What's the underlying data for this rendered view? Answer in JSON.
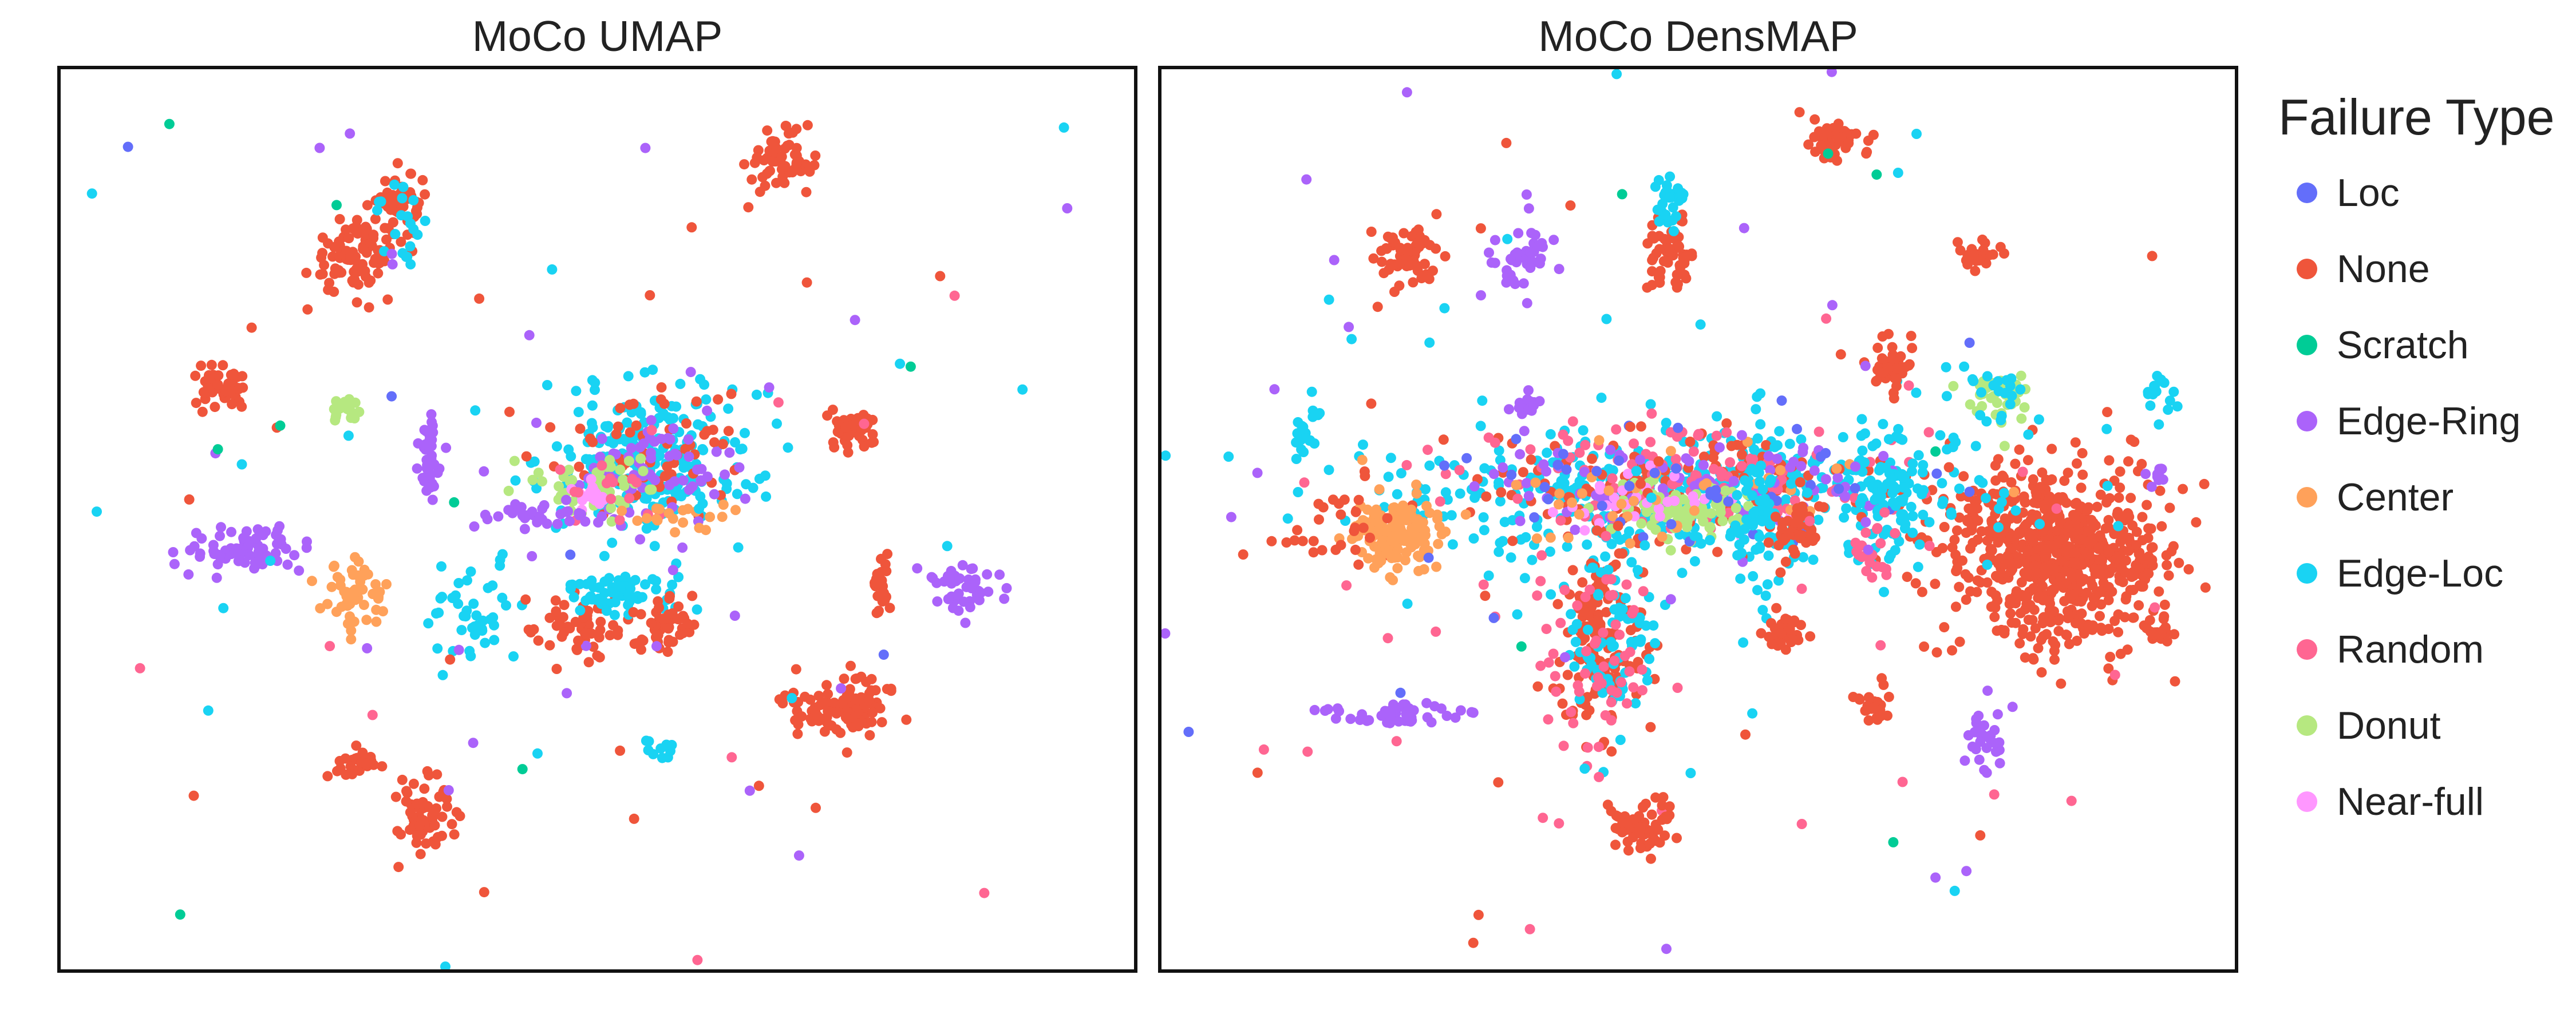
{
  "chart_data": [
    {
      "type": "scatter",
      "title": "MoCo UMAP",
      "xlabel": "",
      "ylabel": "",
      "xlim": [
        -10,
        10
      ],
      "ylim": [
        -9,
        9
      ],
      "grid": false,
      "legend_position": "right",
      "categories": [
        "Loc",
        "None",
        "Scratch",
        "Edge-Ring",
        "Center",
        "Edge-Loc",
        "Random",
        "Donut",
        "Near-full"
      ],
      "clusters": [
        {
          "label": "None",
          "x": -4.5,
          "y": 5.3,
          "sx": 0.45,
          "sy": 0.4,
          "n": 90
        },
        {
          "label": "None",
          "x": -3.6,
          "y": 6.3,
          "sx": 0.22,
          "sy": 0.3,
          "n": 50
        },
        {
          "label": "Edge-Loc",
          "x": -3.7,
          "y": 6.2,
          "sx": 0.25,
          "sy": 0.35,
          "n": 20
        },
        {
          "label": "None",
          "x": 3.4,
          "y": 7.1,
          "sx": 0.3,
          "sy": 0.3,
          "n": 60
        },
        {
          "label": "None",
          "x": -7.0,
          "y": 2.6,
          "sx": 0.28,
          "sy": 0.22,
          "n": 50
        },
        {
          "label": "Donut",
          "x": -4.7,
          "y": 2.2,
          "sx": 0.12,
          "sy": 0.12,
          "n": 18
        },
        {
          "label": "Edge-Ring",
          "x": -3.1,
          "y": 1.3,
          "sx": 0.15,
          "sy": 0.45,
          "n": 40
        },
        {
          "label": "Edge-Ring",
          "x": -6.6,
          "y": -0.6,
          "sx": 0.55,
          "sy": 0.22,
          "n": 70
        },
        {
          "label": "Edge-Loc",
          "x": 1.0,
          "y": 1.2,
          "sx": 1.0,
          "sy": 0.8,
          "n": 230
        },
        {
          "label": "None",
          "x": 1.0,
          "y": 1.5,
          "sx": 0.9,
          "sy": 0.7,
          "n": 60
        },
        {
          "label": "Edge-Ring",
          "x": 1.2,
          "y": 1.0,
          "sx": 0.8,
          "sy": 0.6,
          "n": 70
        },
        {
          "label": "Donut",
          "x": 0.1,
          "y": 0.7,
          "sx": 0.55,
          "sy": 0.3,
          "n": 50
        },
        {
          "label": "Near-full",
          "x": -0.2,
          "y": 0.4,
          "sx": 0.15,
          "sy": 0.15,
          "n": 18
        },
        {
          "label": "Random",
          "x": 0.3,
          "y": 0.5,
          "sx": 0.4,
          "sy": 0.3,
          "n": 15
        },
        {
          "label": "Edge-Ring",
          "x": -0.9,
          "y": 0.1,
          "sx": 0.6,
          "sy": 0.15,
          "n": 35
        },
        {
          "label": "Center",
          "x": 1.6,
          "y": 0.1,
          "sx": 0.5,
          "sy": 0.15,
          "n": 20
        },
        {
          "label": "None",
          "x": 4.8,
          "y": 1.8,
          "sx": 0.25,
          "sy": 0.25,
          "n": 40
        },
        {
          "label": "Center",
          "x": -4.5,
          "y": -1.5,
          "sx": 0.3,
          "sy": 0.3,
          "n": 50
        },
        {
          "label": "Edge-Loc",
          "x": -2.3,
          "y": -2.0,
          "sx": 0.5,
          "sy": 0.5,
          "n": 45
        },
        {
          "label": "None",
          "x": -0.2,
          "y": -2.2,
          "sx": 0.5,
          "sy": 0.35,
          "n": 60
        },
        {
          "label": "Edge-Loc",
          "x": 0.4,
          "y": -1.5,
          "sx": 0.6,
          "sy": 0.2,
          "n": 60
        },
        {
          "label": "None",
          "x": 1.3,
          "y": -2.0,
          "sx": 0.3,
          "sy": 0.3,
          "n": 40
        },
        {
          "label": "None",
          "x": 4.5,
          "y": -3.7,
          "sx": 0.55,
          "sy": 0.3,
          "n": 110
        },
        {
          "label": "None",
          "x": 5.3,
          "y": -1.3,
          "sx": 0.08,
          "sy": 0.4,
          "n": 25
        },
        {
          "label": "Edge-Ring",
          "x": 6.9,
          "y": -1.4,
          "sx": 0.35,
          "sy": 0.25,
          "n": 40
        },
        {
          "label": "None",
          "x": -3.2,
          "y": -5.9,
          "sx": 0.35,
          "sy": 0.4,
          "n": 70
        },
        {
          "label": "None",
          "x": -4.4,
          "y": -4.9,
          "sx": 0.2,
          "sy": 0.2,
          "n": 30
        },
        {
          "label": "Edge-Loc",
          "x": 1.2,
          "y": -4.6,
          "sx": 0.15,
          "sy": 0.1,
          "n": 10
        },
        {
          "label": "Random",
          "x": 0.0,
          "y": -2.0,
          "sx": 5.5,
          "sy": 5.0,
          "n": 10
        },
        {
          "label": "Edge-Ring",
          "x": 0.0,
          "y": 0.0,
          "sx": 6.5,
          "sy": 5.5,
          "n": 30
        },
        {
          "label": "Edge-Loc",
          "x": 0.0,
          "y": 0.0,
          "sx": 6.5,
          "sy": 5.5,
          "n": 25
        },
        {
          "label": "None",
          "x": 0.0,
          "y": 0.0,
          "sx": 6.5,
          "sy": 5.5,
          "n": 25
        },
        {
          "label": "Scratch",
          "x": 0.0,
          "y": 0.0,
          "sx": 6.5,
          "sy": 5.5,
          "n": 8
        },
        {
          "label": "Loc",
          "x": 0.0,
          "y": 0.0,
          "sx": 6.5,
          "sy": 5.5,
          "n": 6
        }
      ]
    },
    {
      "type": "scatter",
      "title": "MoCo DensMAP",
      "xlabel": "",
      "ylabel": "",
      "xlim": [
        -10,
        10
      ],
      "ylim": [
        -9,
        9
      ],
      "grid": false,
      "legend_position": "right",
      "categories": [
        "Loc",
        "None",
        "Scratch",
        "Edge-Ring",
        "Center",
        "Edge-Loc",
        "Random",
        "Donut",
        "Near-full"
      ],
      "clusters": [
        {
          "label": "None",
          "x": 6.7,
          "y": -0.7,
          "sx": 1.0,
          "sy": 0.9,
          "n": 700
        },
        {
          "label": "Edge-Loc",
          "x": -0.2,
          "y": 0.5,
          "sx": 2.8,
          "sy": 0.6,
          "n": 450
        },
        {
          "label": "None",
          "x": -0.2,
          "y": 0.6,
          "sx": 2.6,
          "sy": 0.6,
          "n": 150
        },
        {
          "label": "Random",
          "x": -0.5,
          "y": 0.7,
          "sx": 2.0,
          "sy": 0.55,
          "n": 120
        },
        {
          "label": "Edge-Ring",
          "x": 0.0,
          "y": 0.7,
          "sx": 2.0,
          "sy": 0.5,
          "n": 80
        },
        {
          "label": "Donut",
          "x": -0.4,
          "y": 0.2,
          "sx": 0.7,
          "sy": 0.3,
          "n": 80
        },
        {
          "label": "Near-full",
          "x": -0.8,
          "y": 0.3,
          "sx": 1.0,
          "sy": 0.3,
          "n": 30
        },
        {
          "label": "Center",
          "x": -0.6,
          "y": 0.6,
          "sx": 2.0,
          "sy": 0.5,
          "n": 40
        },
        {
          "label": "Loc",
          "x": 0.0,
          "y": 0.6,
          "sx": 2.5,
          "sy": 0.6,
          "n": 40
        },
        {
          "label": "Center",
          "x": -5.7,
          "y": -0.3,
          "sx": 0.4,
          "sy": 0.35,
          "n": 160
        },
        {
          "label": "None",
          "x": -1.8,
          "y": -2.3,
          "sx": 0.4,
          "sy": 1.0,
          "n": 140
        },
        {
          "label": "Edge-Loc",
          "x": -1.7,
          "y": -2.3,
          "sx": 0.45,
          "sy": 0.9,
          "n": 80
        },
        {
          "label": "Random",
          "x": -2.0,
          "y": -2.5,
          "sx": 0.6,
          "sy": 1.4,
          "n": 60
        },
        {
          "label": "Edge-Loc",
          "x": 1.2,
          "y": 0.0,
          "sx": 0.35,
          "sy": 0.8,
          "n": 70
        },
        {
          "label": "None",
          "x": 1.8,
          "y": -0.2,
          "sx": 0.25,
          "sy": 0.3,
          "n": 40
        },
        {
          "label": "Edge-Loc",
          "x": 3.6,
          "y": 0.5,
          "sx": 0.3,
          "sy": 0.8,
          "n": 70
        },
        {
          "label": "Random",
          "x": 3.2,
          "y": -0.6,
          "sx": 0.2,
          "sy": 0.3,
          "n": 20
        },
        {
          "label": "None",
          "x": -5.4,
          "y": 5.3,
          "sx": 0.3,
          "sy": 0.3,
          "n": 60
        },
        {
          "label": "None",
          "x": -0.5,
          "y": 5.3,
          "sx": 0.2,
          "sy": 0.35,
          "n": 60
        },
        {
          "label": "Edge-Loc",
          "x": -0.5,
          "y": 6.3,
          "sx": 0.15,
          "sy": 0.25,
          "n": 30
        },
        {
          "label": "None",
          "x": 2.6,
          "y": 7.6,
          "sx": 0.3,
          "sy": 0.2,
          "n": 50
        },
        {
          "label": "None",
          "x": 3.6,
          "y": 3.1,
          "sx": 0.25,
          "sy": 0.25,
          "n": 40
        },
        {
          "label": "Donut",
          "x": 5.6,
          "y": 2.5,
          "sx": 0.3,
          "sy": 0.3,
          "n": 40
        },
        {
          "label": "Edge-Loc",
          "x": 5.6,
          "y": 2.6,
          "sx": 0.3,
          "sy": 0.3,
          "n": 20
        },
        {
          "label": "None",
          "x": 5.2,
          "y": 5.3,
          "sx": 0.2,
          "sy": 0.15,
          "n": 25
        },
        {
          "label": "Edge-Ring",
          "x": -3.3,
          "y": 5.2,
          "sx": 0.3,
          "sy": 0.4,
          "n": 40
        },
        {
          "label": "Edge-Ring",
          "x": -5.5,
          "y": -3.9,
          "sx": 0.6,
          "sy": 0.1,
          "n": 50
        },
        {
          "label": "Edge-Ring",
          "x": 5.4,
          "y": -4.5,
          "sx": 0.2,
          "sy": 0.35,
          "n": 30
        },
        {
          "label": "None",
          "x": -1.0,
          "y": -6.1,
          "sx": 0.3,
          "sy": 0.25,
          "n": 60
        },
        {
          "label": "None",
          "x": 1.6,
          "y": -2.2,
          "sx": 0.2,
          "sy": 0.25,
          "n": 30
        },
        {
          "label": "None",
          "x": 3.3,
          "y": -3.8,
          "sx": 0.15,
          "sy": 0.2,
          "n": 25
        },
        {
          "label": "Edge-Ring",
          "x": -3.2,
          "y": 2.3,
          "sx": 0.15,
          "sy": 0.1,
          "n": 15
        },
        {
          "label": "None",
          "x": 8.6,
          "y": -2.3,
          "sx": 0.12,
          "sy": 0.1,
          "n": 15
        },
        {
          "label": "Edge-Loc",
          "x": -7.3,
          "y": 1.8,
          "sx": 0.15,
          "sy": 0.3,
          "n": 20
        },
        {
          "label": "Edge-Loc",
          "x": 8.6,
          "y": 2.5,
          "sx": 0.15,
          "sy": 0.2,
          "n": 15
        },
        {
          "label": "Edge-Ring",
          "x": 8.5,
          "y": 0.9,
          "sx": 0.1,
          "sy": 0.1,
          "n": 10
        },
        {
          "label": "None",
          "x": -6.8,
          "y": -0.1,
          "sx": 0.5,
          "sy": 0.5,
          "n": 25
        },
        {
          "label": "Random",
          "x": 0.0,
          "y": -2.0,
          "sx": 5.5,
          "sy": 4.0,
          "n": 30
        },
        {
          "label": "Edge-Ring",
          "x": 0.0,
          "y": 0.0,
          "sx": 6.5,
          "sy": 5.5,
          "n": 25
        },
        {
          "label": "Edge-Loc",
          "x": 0.0,
          "y": 0.0,
          "sx": 6.5,
          "sy": 5.5,
          "n": 40
        },
        {
          "label": "None",
          "x": 0.0,
          "y": 0.0,
          "sx": 6.5,
          "sy": 5.5,
          "n": 25
        },
        {
          "label": "Scratch",
          "x": 0.0,
          "y": 0.0,
          "sx": 6.5,
          "sy": 5.5,
          "n": 8
        },
        {
          "label": "Loc",
          "x": 0.0,
          "y": 0.0,
          "sx": 6.5,
          "sy": 5.5,
          "n": 8
        }
      ]
    }
  ],
  "legend": {
    "title": "Failure Type",
    "items": [
      {
        "label": "Loc",
        "color": "#636efa"
      },
      {
        "label": "None",
        "color": "#ef553b"
      },
      {
        "label": "Scratch",
        "color": "#00cc96"
      },
      {
        "label": "Edge-Ring",
        "color": "#ab63fa"
      },
      {
        "label": "Center",
        "color": "#ffa15a"
      },
      {
        "label": "Edge-Loc",
        "color": "#19d3f3"
      },
      {
        "label": "Random",
        "color": "#ff6692"
      },
      {
        "label": "Donut",
        "color": "#b6e880"
      },
      {
        "label": "Near-full",
        "color": "#ff97ff"
      }
    ]
  }
}
